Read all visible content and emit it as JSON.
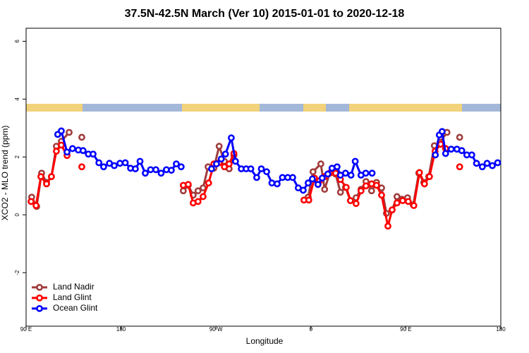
{
  "chart_data": {
    "type": "line",
    "title": "37.5N-42.5N March (Ver 10)   2015-01-01 to 2020-12-18",
    "x_label": "Longitude",
    "y_label": "XCO2 - MLO trend (ppm)",
    "xlim": [
      90,
      540
    ],
    "ylim": [
      -3.85,
      6.45
    ],
    "xticks": [
      {
        "value": 90,
        "label": "90 E"
      },
      180,
      {
        "value": 270,
        "label": "90 W"
      },
      {
        "value": 360,
        "label": "0"
      },
      {
        "value": 450,
        "label": "90 E"
      },
      {
        "value": 540,
        "label": "180"
      }
    ],
    "yticks": [
      -2,
      0,
      2,
      4,
      6
    ],
    "legend": "bottom-left",
    "series": [
      {
        "name": "Land Nadir",
        "color": "#a03c3c",
        "x": [
          95.3,
          100,
          104.7,
          109.4,
          114,
          118.7,
          123.4,
          130.8,
          null,
          142.8,
          null,
          239,
          243.7,
          248.4,
          253,
          257.8,
          262.5,
          268,
          273,
          278,
          282.5,
          287,
          null,
          357.4,
          362,
          369.4,
          373,
          377.8,
          383.4,
          388,
          392.8,
          397.5,
          402.8,
          407.5,
          412.2,
          417.5,
          422.2,
          427,
          431.6,
          437,
          441.6,
          446.3,
          451.6,
          457,
          462.3,
          467,
          471.7,
          477,
          482.4,
          489,
          null,
          501
        ],
        "values": [
          0.61,
          0.29,
          1.44,
          1.12,
          1.32,
          2.37,
          2.54,
          2.85,
          null,
          2.68,
          null,
          0.83,
          1.02,
          0.68,
          0.83,
          0.93,
          1.66,
          1.61,
          2.37,
          1.85,
          1.59,
          2.05,
          null,
          0.61,
          1.49,
          1.76,
          0.88,
          1.44,
          1.41,
          0.78,
          0.95,
          0.49,
          0.59,
          0.88,
          1.15,
          0.83,
          1.12,
          0.93,
          0.05,
          0.17,
          0.63,
          0.54,
          0.59,
          0.34,
          1.44,
          1.12,
          1.32,
          2.39,
          2.51,
          2.85,
          null,
          2.68
        ]
      },
      {
        "name": "Land Glint",
        "color": "#ff0000",
        "x": [
          94.7,
          99.4,
          104,
          109.4,
          114,
          118.7,
          123.4,
          128.8,
          null,
          142.8,
          null,
          239,
          243.7,
          248.4,
          253,
          257.8,
          263,
          268,
          273,
          278,
          282.5,
          287,
          null,
          353.4,
          358,
          363.4,
          368,
          373,
          377.8,
          383.4,
          388,
          393.5,
          397.5,
          402.8,
          407.5,
          412.2,
          417.5,
          422.2,
          427,
          433,
          437,
          441.6,
          447,
          452.3,
          457.6,
          462.9,
          467.7,
          472.4,
          477.7,
          483,
          487.7,
          null,
          501
        ],
        "values": [
          0.46,
          0.32,
          1.32,
          1.07,
          1.32,
          2.2,
          2.41,
          2.05,
          null,
          1.66,
          null,
          1.02,
          1.05,
          0.41,
          0.46,
          0.63,
          1.1,
          1.76,
          1.8,
          1.66,
          1.76,
          2.12,
          null,
          0.51,
          0.51,
          1.27,
          1.17,
          1.32,
          1.44,
          1.44,
          1.22,
          0.95,
          0.49,
          0.39,
          0.83,
          1.0,
          1.07,
          1.02,
          0.68,
          -0.39,
          0.17,
          0.41,
          0.49,
          0.46,
          0.32,
          1.46,
          1.07,
          1.32,
          2.2,
          2.44,
          2.29,
          null,
          1.66
        ]
      },
      {
        "name": "Ocean Glint",
        "color": "#0000ff",
        "x": [
          120,
          123.4,
          128.8,
          134,
          139.5,
          144,
          149,
          153.5,
          159,
          163.5,
          169,
          173.6,
          179,
          184,
          189,
          193.6,
          198,
          203,
          208,
          213,
          218,
          223,
          227.7,
          232.4,
          237,
          null,
          265.8,
          270.5,
          275,
          279,
          284.5,
          288.5,
          294,
          298.6,
          303,
          308.6,
          313,
          318,
          323,
          328,
          333,
          338,
          342.7,
          348,
          352.7,
          357.4,
          361.4,
          366.7,
          370.7,
          376,
          380,
          384.8,
          388,
          392.8,
          398,
          402,
          407.5,
          412,
          418,
          null,
          478,
          481.7,
          484.4,
          487.7,
          493,
          498.4,
          503,
          507.8,
          512.5,
          517,
          522.5,
          527,
          532,
          537
        ],
        "values": [
          2.78,
          2.9,
          2.17,
          2.29,
          2.24,
          2.22,
          2.1,
          2.1,
          1.8,
          1.66,
          1.78,
          1.7,
          1.78,
          1.8,
          1.61,
          1.59,
          1.85,
          1.44,
          1.56,
          1.56,
          1.44,
          1.56,
          1.54,
          1.76,
          1.66,
          null,
          1.59,
          1.76,
          1.93,
          2.1,
          2.66,
          1.85,
          1.59,
          1.59,
          1.59,
          1.29,
          1.59,
          1.49,
          1.1,
          1.07,
          1.29,
          1.29,
          1.29,
          0.93,
          0.85,
          1.1,
          1.24,
          1.05,
          1.27,
          1.41,
          1.61,
          1.66,
          1.37,
          1.44,
          1.37,
          1.85,
          1.37,
          1.44,
          1.44,
          null,
          2.07,
          2.76,
          2.88,
          2.12,
          2.27,
          2.27,
          2.22,
          2.07,
          2.07,
          1.78,
          1.66,
          1.78,
          1.7,
          1.8
        ]
      }
    ]
  }
}
